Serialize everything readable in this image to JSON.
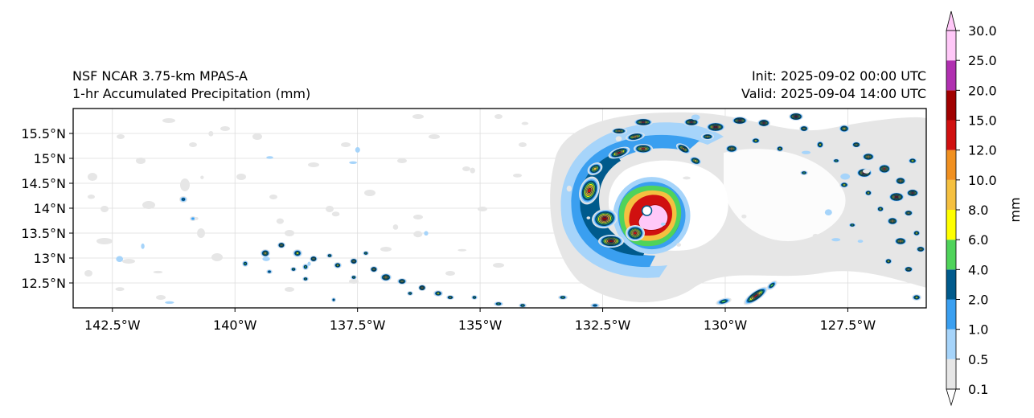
{
  "header": {
    "model": "NSF NCAR 3.75-km MPAS-A",
    "field": "1-hr Accumulated Precipitation (mm)",
    "init": "Init: 2025-09-02 00:00 UTC",
    "valid": "Valid: 2025-09-04 14:00 UTC"
  },
  "map": {
    "lon_range": [
      -143.3,
      -125.9
    ],
    "lat_range": [
      12.0,
      16.0
    ],
    "lon_ticks": [
      {
        "value": -142.5,
        "label": "142.5°W"
      },
      {
        "value": -140.0,
        "label": "140°W"
      },
      {
        "value": -137.5,
        "label": "137.5°W"
      },
      {
        "value": -135.0,
        "label": "135°W"
      },
      {
        "value": -132.5,
        "label": "132.5°W"
      },
      {
        "value": -130.0,
        "label": "130°W"
      },
      {
        "value": -127.5,
        "label": "127.5°W"
      }
    ],
    "lat_ticks": [
      {
        "value": 12.5,
        "label": "12.5°N"
      },
      {
        "value": 13.0,
        "label": "13°N"
      },
      {
        "value": 13.5,
        "label": "13.5°N"
      },
      {
        "value": 14.0,
        "label": "14°N"
      },
      {
        "value": 14.5,
        "label": "14.5°N"
      },
      {
        "value": 15.0,
        "label": "15°N"
      },
      {
        "value": 15.5,
        "label": "15.5°N"
      }
    ],
    "storm_center": {
      "lon": -131.5,
      "lat": 13.95
    }
  },
  "colorbar": {
    "unit": "mm",
    "levels": [
      "0.1",
      "0.5",
      "1.0",
      "2.0",
      "4.0",
      "6.0",
      "8.0",
      "10.0",
      "12.0",
      "15.0",
      "20.0",
      "25.0",
      "30.0"
    ],
    "colors": [
      "#e6e6e6",
      "#a6d4fa",
      "#3a9ff0",
      "#005a8c",
      "#4fd35a",
      "#ffff00",
      "#f5c040",
      "#f09020",
      "#d01010",
      "#a00000",
      "#b030b0",
      "#ffc8f8"
    ]
  }
}
